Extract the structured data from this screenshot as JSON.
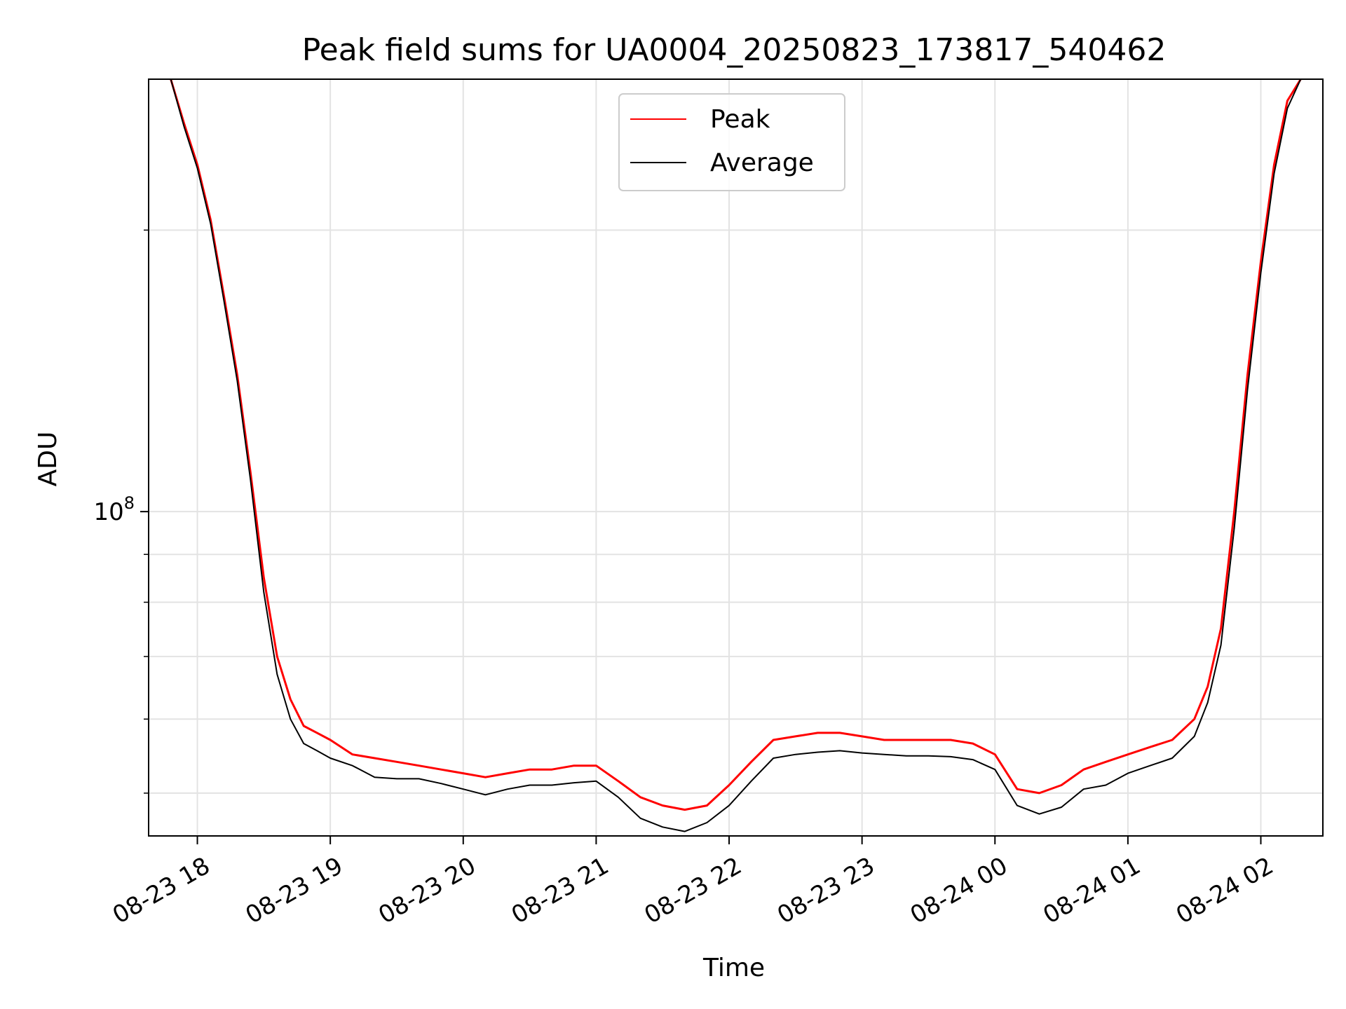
{
  "chart_data": {
    "type": "line",
    "title": "Peak field sums for UA0004_20250823_173817_540462",
    "xlabel": "Time",
    "ylabel": "ADU",
    "x_type": "datetime",
    "xlim": [
      "2025-08-23 17:38",
      "2025-08-24 02:28"
    ],
    "ylim": [
      45000000,
      290000000
    ],
    "y_scale": "log",
    "grid": true,
    "legend_position": "top-center",
    "x_ticks": [
      {
        "t": "2025-08-23 18:00",
        "label": "08-23 18"
      },
      {
        "t": "2025-08-23 19:00",
        "label": "08-23 19"
      },
      {
        "t": "2025-08-23 20:00",
        "label": "08-23 20"
      },
      {
        "t": "2025-08-23 21:00",
        "label": "08-23 21"
      },
      {
        "t": "2025-08-23 22:00",
        "label": "08-23 22"
      },
      {
        "t": "2025-08-23 23:00",
        "label": "08-23 23"
      },
      {
        "t": "2025-08-24 00:00",
        "label": "08-24 00"
      },
      {
        "t": "2025-08-24 01:00",
        "label": "08-24 01"
      },
      {
        "t": "2025-08-24 02:00",
        "label": "08-24 02"
      }
    ],
    "y_major_tick": {
      "value": 100000000,
      "label_base": "10",
      "label_exp": "8"
    },
    "y_minor_ticks": [
      50000000,
      60000000,
      70000000,
      80000000,
      90000000,
      200000000
    ],
    "series": [
      {
        "name": "Peak",
        "color": "#ff0000",
        "x": [
          "2025-08-23 17:48",
          "2025-08-23 17:54",
          "2025-08-23 18:00",
          "2025-08-23 18:06",
          "2025-08-23 18:12",
          "2025-08-23 18:18",
          "2025-08-23 18:24",
          "2025-08-23 18:30",
          "2025-08-23 18:36",
          "2025-08-23 18:42",
          "2025-08-23 18:48",
          "2025-08-23 18:54",
          "2025-08-23 19:00",
          "2025-08-23 19:10",
          "2025-08-23 19:20",
          "2025-08-23 19:30",
          "2025-08-23 19:40",
          "2025-08-23 19:50",
          "2025-08-23 20:00",
          "2025-08-23 20:10",
          "2025-08-23 20:20",
          "2025-08-23 20:30",
          "2025-08-23 20:40",
          "2025-08-23 20:50",
          "2025-08-23 21:00",
          "2025-08-23 21:10",
          "2025-08-23 21:20",
          "2025-08-23 21:30",
          "2025-08-23 21:40",
          "2025-08-23 21:50",
          "2025-08-23 22:00",
          "2025-08-23 22:10",
          "2025-08-23 22:20",
          "2025-08-23 22:30",
          "2025-08-23 22:40",
          "2025-08-23 22:50",
          "2025-08-23 23:00",
          "2025-08-23 23:10",
          "2025-08-23 23:20",
          "2025-08-23 23:30",
          "2025-08-23 23:40",
          "2025-08-23 23:50",
          "2025-08-24 00:00",
          "2025-08-24 00:10",
          "2025-08-24 00:20",
          "2025-08-24 00:30",
          "2025-08-24 00:40",
          "2025-08-24 00:50",
          "2025-08-24 01:00",
          "2025-08-24 01:10",
          "2025-08-24 01:20",
          "2025-08-24 01:30",
          "2025-08-24 01:36",
          "2025-08-24 01:42",
          "2025-08-24 01:48",
          "2025-08-24 01:54",
          "2025-08-24 02:00",
          "2025-08-24 02:06",
          "2025-08-24 02:12",
          "2025-08-24 02:18"
        ],
        "values": [
          290000000,
          260000000,
          235000000,
          205000000,
          170000000,
          140000000,
          110000000,
          85000000,
          70000000,
          63000000,
          59000000,
          58000000,
          57000000,
          55000000,
          54500000,
          54000000,
          53500000,
          53000000,
          52500000,
          52000000,
          52500000,
          53000000,
          53000000,
          53500000,
          53500000,
          51500000,
          49500000,
          48500000,
          48000000,
          48500000,
          51000000,
          54000000,
          57000000,
          57500000,
          58000000,
          58000000,
          57500000,
          57000000,
          57000000,
          57000000,
          57000000,
          56500000,
          55000000,
          50500000,
          50000000,
          51000000,
          53000000,
          54000000,
          55000000,
          56000000,
          57000000,
          60000000,
          65000000,
          75000000,
          100000000,
          140000000,
          185000000,
          235000000,
          275000000,
          290000000
        ]
      },
      {
        "name": "Average",
        "color": "#000000",
        "x": [
          "2025-08-23 17:48",
          "2025-08-23 17:54",
          "2025-08-23 18:00",
          "2025-08-23 18:06",
          "2025-08-23 18:12",
          "2025-08-23 18:18",
          "2025-08-23 18:24",
          "2025-08-23 18:30",
          "2025-08-23 18:36",
          "2025-08-23 18:42",
          "2025-08-23 18:48",
          "2025-08-23 18:54",
          "2025-08-23 19:00",
          "2025-08-23 19:10",
          "2025-08-23 19:20",
          "2025-08-23 19:30",
          "2025-08-23 19:40",
          "2025-08-23 19:50",
          "2025-08-23 20:00",
          "2025-08-23 20:10",
          "2025-08-23 20:20",
          "2025-08-23 20:30",
          "2025-08-23 20:40",
          "2025-08-23 20:50",
          "2025-08-23 21:00",
          "2025-08-23 21:10",
          "2025-08-23 21:20",
          "2025-08-23 21:30",
          "2025-08-23 21:40",
          "2025-08-23 21:50",
          "2025-08-23 22:00",
          "2025-08-23 22:10",
          "2025-08-23 22:20",
          "2025-08-23 22:30",
          "2025-08-23 22:40",
          "2025-08-23 22:50",
          "2025-08-23 23:00",
          "2025-08-23 23:10",
          "2025-08-23 23:20",
          "2025-08-23 23:30",
          "2025-08-23 23:40",
          "2025-08-23 23:50",
          "2025-08-24 00:00",
          "2025-08-24 00:10",
          "2025-08-24 00:20",
          "2025-08-24 00:30",
          "2025-08-24 00:40",
          "2025-08-24 00:50",
          "2025-08-24 01:00",
          "2025-08-24 01:10",
          "2025-08-24 01:20",
          "2025-08-24 01:30",
          "2025-08-24 01:36",
          "2025-08-24 01:42",
          "2025-08-24 01:48",
          "2025-08-24 01:54",
          "2025-08-24 02:00",
          "2025-08-24 02:06",
          "2025-08-24 02:12",
          "2025-08-24 02:18"
        ],
        "values": [
          290000000,
          258000000,
          233000000,
          203000000,
          168000000,
          138000000,
          108000000,
          82000000,
          67000000,
          60000000,
          56500000,
          55500000,
          54500000,
          53500000,
          52000000,
          51800000,
          51800000,
          51200000,
          50500000,
          49800000,
          50500000,
          51000000,
          51000000,
          51300000,
          51500000,
          49500000,
          47000000,
          46000000,
          45500000,
          46500000,
          48500000,
          51500000,
          54500000,
          55000000,
          55300000,
          55500000,
          55200000,
          55000000,
          54800000,
          54800000,
          54700000,
          54300000,
          53000000,
          48500000,
          47500000,
          48300000,
          50500000,
          51000000,
          52500000,
          53500000,
          54500000,
          57500000,
          62500000,
          72000000,
          96000000,
          135000000,
          180000000,
          230000000,
          270000000,
          290000000
        ]
      }
    ]
  }
}
